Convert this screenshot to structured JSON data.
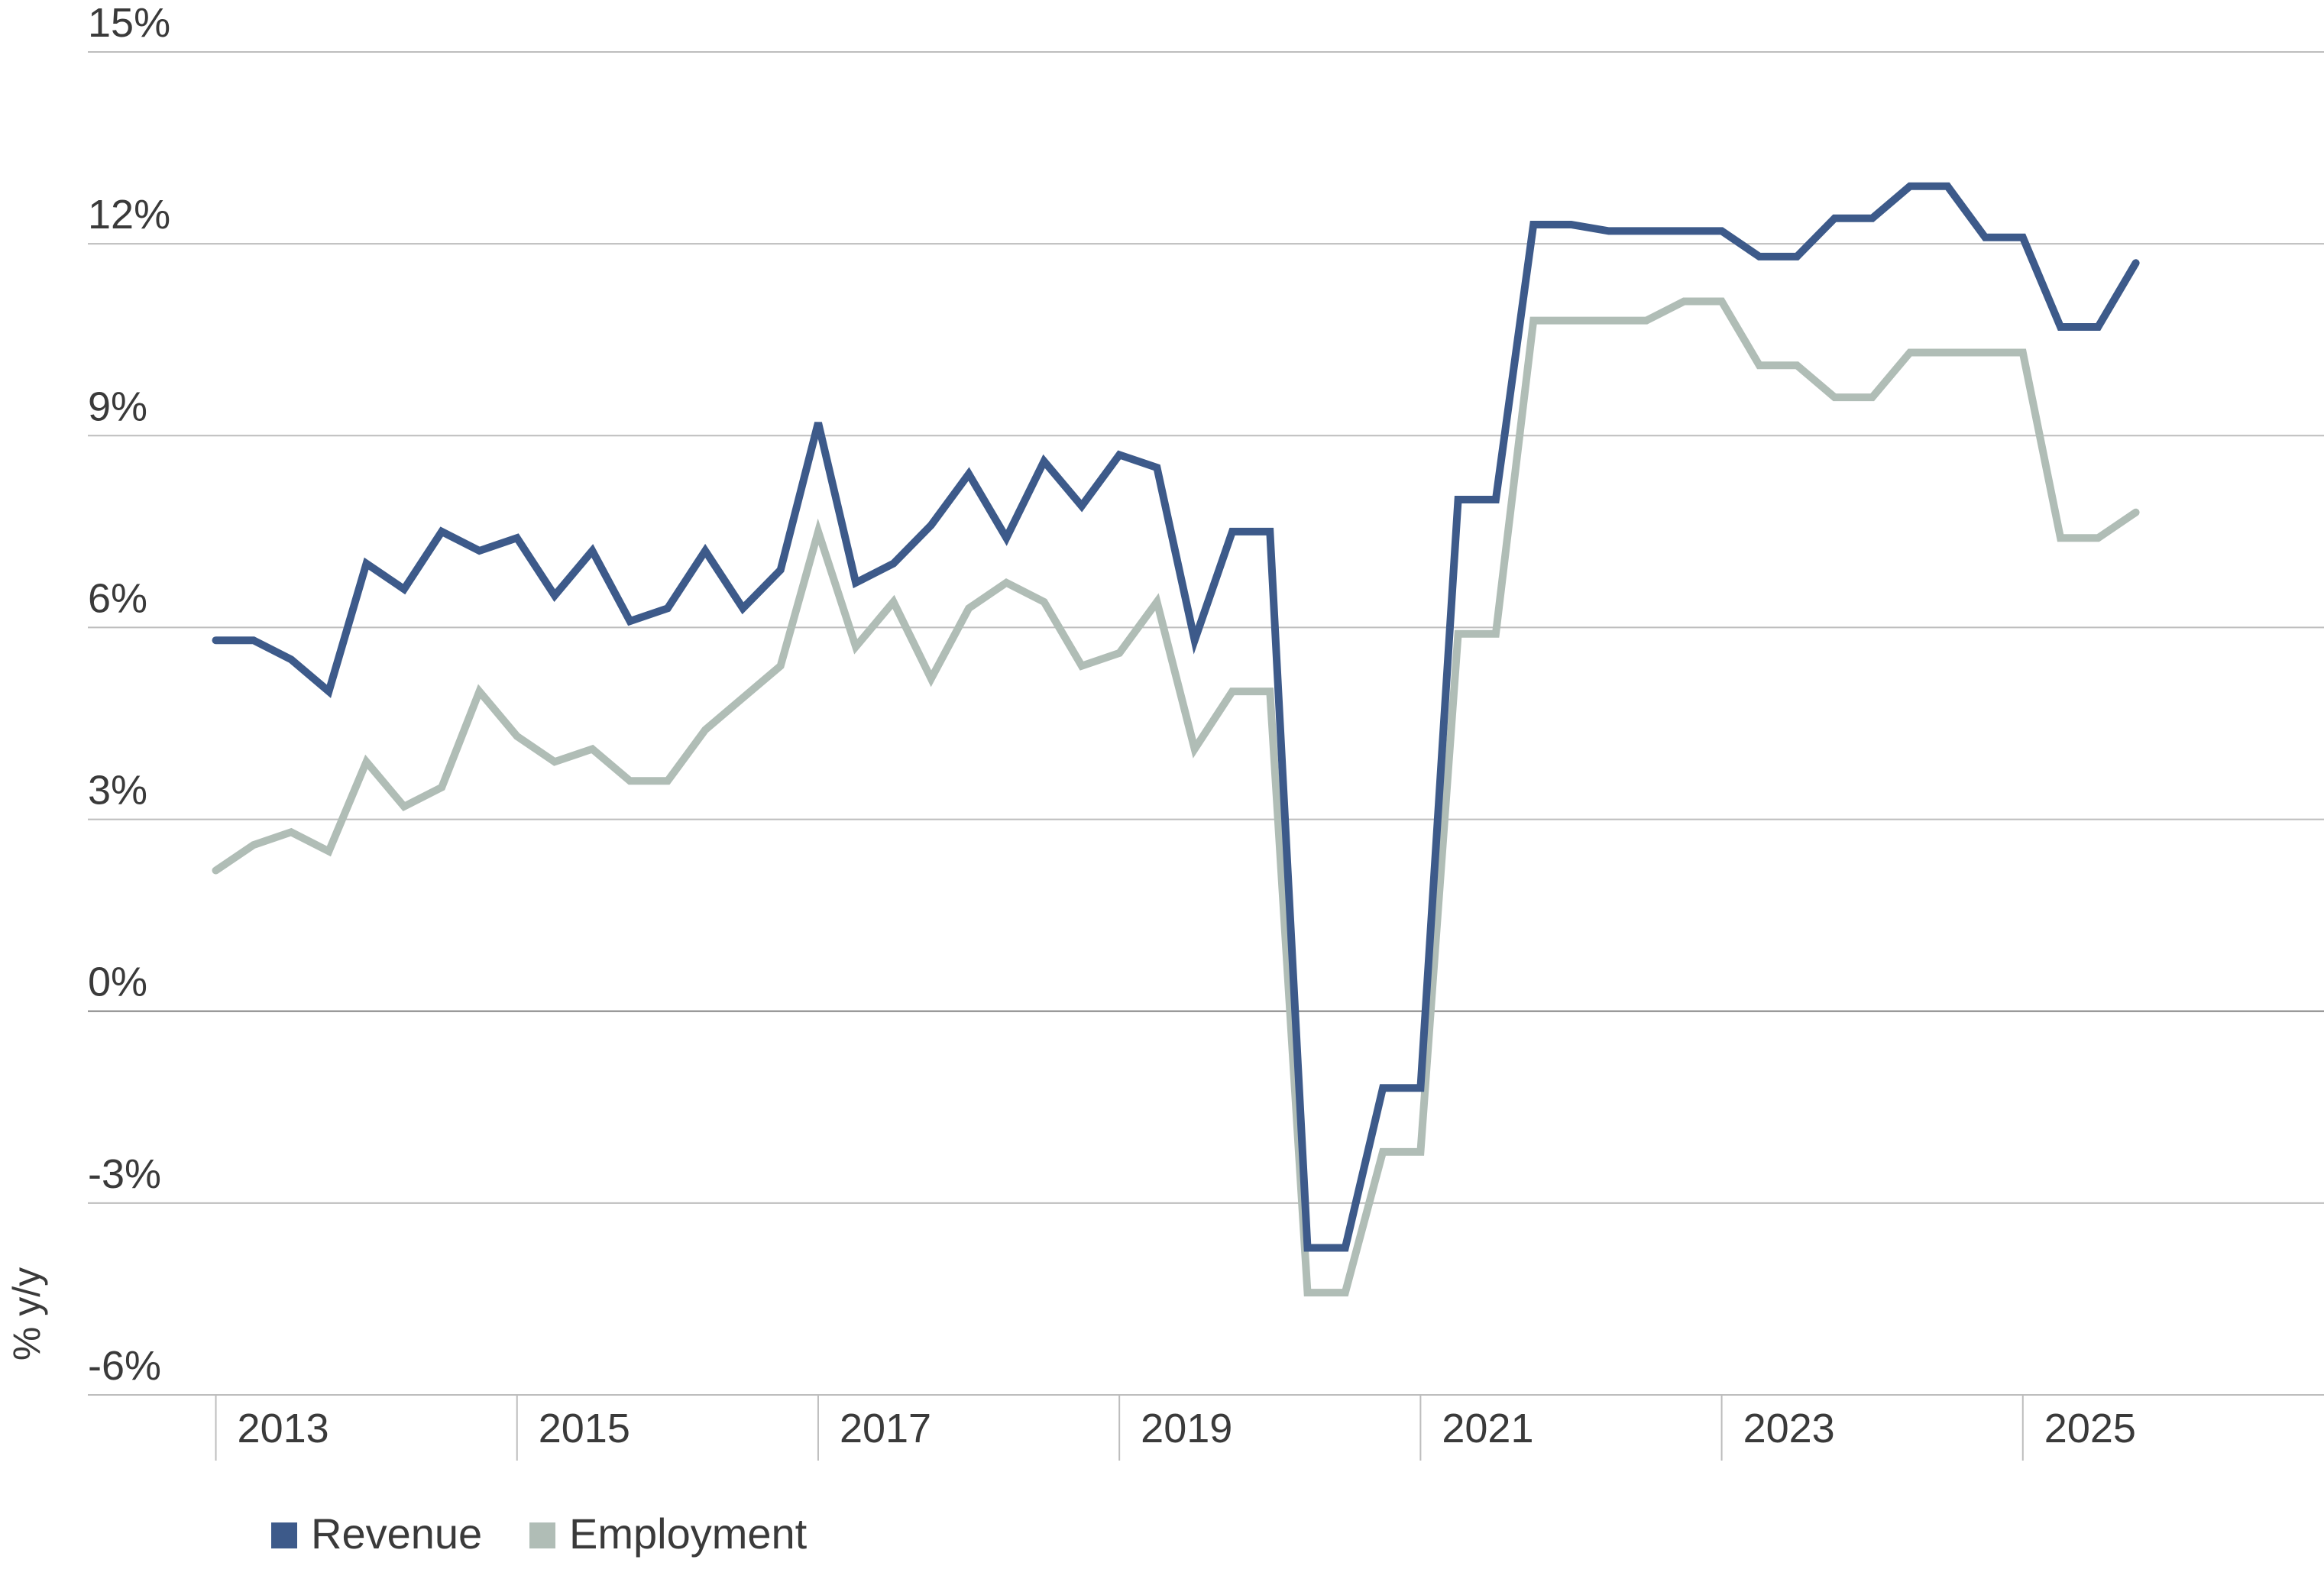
{
  "chart_data": {
    "type": "line",
    "title": "",
    "xlabel": "",
    "ylabel": "% y/y",
    "ylim": [
      -6,
      15
    ],
    "xlim": [
      2012.15,
      2027.0
    ],
    "yticks": [
      {
        "value": 15,
        "label": "15%"
      },
      {
        "value": 12,
        "label": "12%"
      },
      {
        "value": 9,
        "label": "9%"
      },
      {
        "value": 6,
        "label": "6%"
      },
      {
        "value": 3,
        "label": "3%"
      },
      {
        "value": 0,
        "label": "0%"
      },
      {
        "value": -3,
        "label": "-3%"
      },
      {
        "value": -6,
        "label": "-6%"
      }
    ],
    "xticks": [
      {
        "value": 2013,
        "label": "2013"
      },
      {
        "value": 2015,
        "label": "2015"
      },
      {
        "value": 2017,
        "label": "2017"
      },
      {
        "value": 2019,
        "label": "2019"
      },
      {
        "value": 2021,
        "label": "2021"
      },
      {
        "value": 2023,
        "label": "2023"
      },
      {
        "value": 2025,
        "label": "2025"
      }
    ],
    "grid": true,
    "legend_position": "bottom-left",
    "x": [
      2013.0,
      2013.25,
      2013.5,
      2013.75,
      2014.0,
      2014.25,
      2014.5,
      2014.75,
      2015.0,
      2015.25,
      2015.5,
      2015.75,
      2016.0,
      2016.25,
      2016.5,
      2016.75,
      2017.0,
      2017.25,
      2017.5,
      2017.75,
      2018.0,
      2018.25,
      2018.5,
      2018.75,
      2019.0,
      2019.25,
      2019.5,
      2019.75,
      2020.0,
      2020.25,
      2020.5,
      2020.75,
      2021.0,
      2021.25,
      2021.5,
      2021.75,
      2022.0,
      2022.25,
      2022.5,
      2022.75,
      2023.0,
      2023.25,
      2023.5,
      2023.75,
      2024.0,
      2024.25,
      2024.5,
      2024.75,
      2025.0,
      2025.25,
      2025.5,
      2025.75
    ],
    "series": [
      {
        "name": "Revenue",
        "color": "#3d5a8a",
        "values": [
          5.8,
          5.8,
          5.5,
          5.0,
          7.0,
          6.6,
          7.5,
          7.2,
          7.4,
          6.5,
          7.2,
          6.1,
          6.3,
          7.2,
          6.3,
          6.9,
          9.2,
          6.7,
          7.0,
          7.6,
          8.4,
          7.4,
          8.6,
          7.9,
          8.7,
          8.5,
          5.8,
          7.5,
          7.5,
          -3.7,
          -3.7,
          -1.2,
          -1.2,
          8.0,
          8.0,
          12.3,
          12.3,
          12.2,
          12.2,
          12.2,
          12.2,
          11.8,
          11.8,
          12.4,
          12.4,
          12.9,
          12.9,
          12.1,
          12.1,
          10.7,
          10.7,
          11.7
        ]
      },
      {
        "name": "Employment",
        "color": "#b0bdb6",
        "values": [
          2.2,
          2.6,
          2.8,
          2.5,
          3.9,
          3.2,
          3.5,
          5.0,
          4.3,
          3.9,
          4.1,
          3.6,
          3.6,
          4.4,
          4.9,
          5.4,
          7.5,
          5.7,
          6.4,
          5.2,
          6.3,
          6.7,
          6.4,
          5.4,
          5.6,
          6.4,
          4.1,
          5.0,
          5.0,
          -4.4,
          -4.4,
          -2.2,
          -2.2,
          5.9,
          5.9,
          10.8,
          10.8,
          10.8,
          10.8,
          11.1,
          11.1,
          10.1,
          10.1,
          9.6,
          9.6,
          10.3,
          10.3,
          10.3,
          10.3,
          7.4,
          7.4,
          7.8
        ]
      }
    ]
  }
}
